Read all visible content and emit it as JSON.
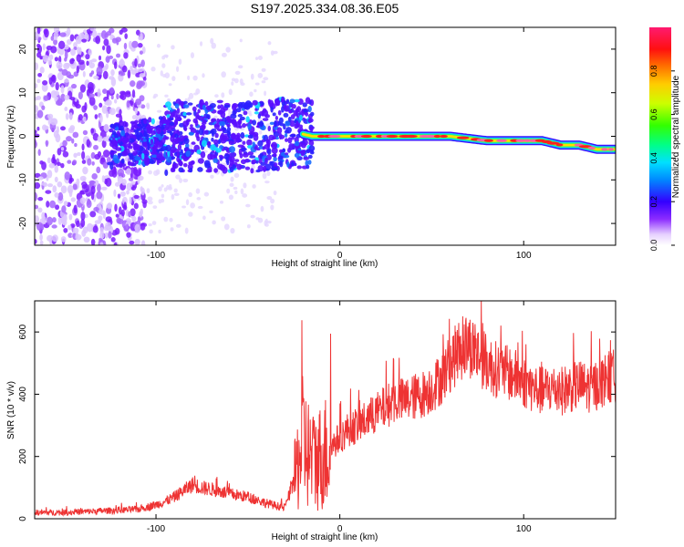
{
  "title": "S197.2025.334.08.36.E05",
  "chart_data": [
    {
      "type": "heatmap",
      "xlabel": "Height of straight line (km)",
      "ylabel": "Frequency (Hz)",
      "xlim": [
        -166,
        150
      ],
      "ylim": [
        -25,
        25
      ],
      "x_ticks": [
        -100,
        0,
        100
      ],
      "y_ticks": [
        -20,
        -10,
        0,
        10,
        20
      ],
      "colorbar": {
        "label": "Normalized spectral amplitude",
        "ticks": [
          "0.0",
          "0.2",
          "0.4",
          "0.6",
          "0.8"
        ],
        "range": [
          0,
          1
        ]
      },
      "ridge": {
        "x": [
          -135,
          -120,
          -100,
          -90,
          -80,
          -60,
          -40,
          -25,
          -15,
          0,
          20,
          40,
          60,
          80,
          100,
          110,
          120,
          130,
          140,
          150
        ],
        "freq": [
          -2,
          -2,
          -1,
          0,
          0,
          0,
          0,
          1,
          0,
          0,
          0,
          0,
          0,
          -1,
          -1,
          -1,
          -2,
          -2,
          -3,
          -3
        ]
      }
    },
    {
      "type": "line",
      "xlabel": "Height of straight line (km)",
      "ylabel": "SNR (10 * v/v)",
      "xlim": [
        -166,
        150
      ],
      "ylim": [
        0,
        700
      ],
      "x_ticks": [
        -100,
        0,
        100
      ],
      "y_ticks": [
        0,
        200,
        400,
        600
      ],
      "series": [
        {
          "name": "SNR",
          "color": "#ee3333",
          "x": [
            -166,
            -150,
            -130,
            -110,
            -100,
            -95,
            -90,
            -85,
            -80,
            -75,
            -70,
            -60,
            -50,
            -40,
            -30,
            -25,
            -20,
            -15,
            -10,
            -5,
            0,
            5,
            10,
            15,
            20,
            25,
            30,
            35,
            40,
            45,
            50,
            55,
            60,
            65,
            70,
            75,
            80,
            85,
            90,
            95,
            100,
            105,
            110,
            115,
            120,
            125,
            130,
            135,
            140,
            145,
            150
          ],
          "values": [
            20,
            20,
            25,
            30,
            45,
            55,
            70,
            90,
            110,
            100,
            95,
            80,
            70,
            50,
            35,
            120,
            250,
            180,
            200,
            230,
            260,
            290,
            300,
            320,
            340,
            360,
            380,
            380,
            390,
            400,
            420,
            450,
            500,
            540,
            560,
            530,
            500,
            480,
            470,
            460,
            440,
            420,
            410,
            420,
            410,
            420,
            430,
            420,
            430,
            450,
            460
          ]
        }
      ]
    }
  ]
}
